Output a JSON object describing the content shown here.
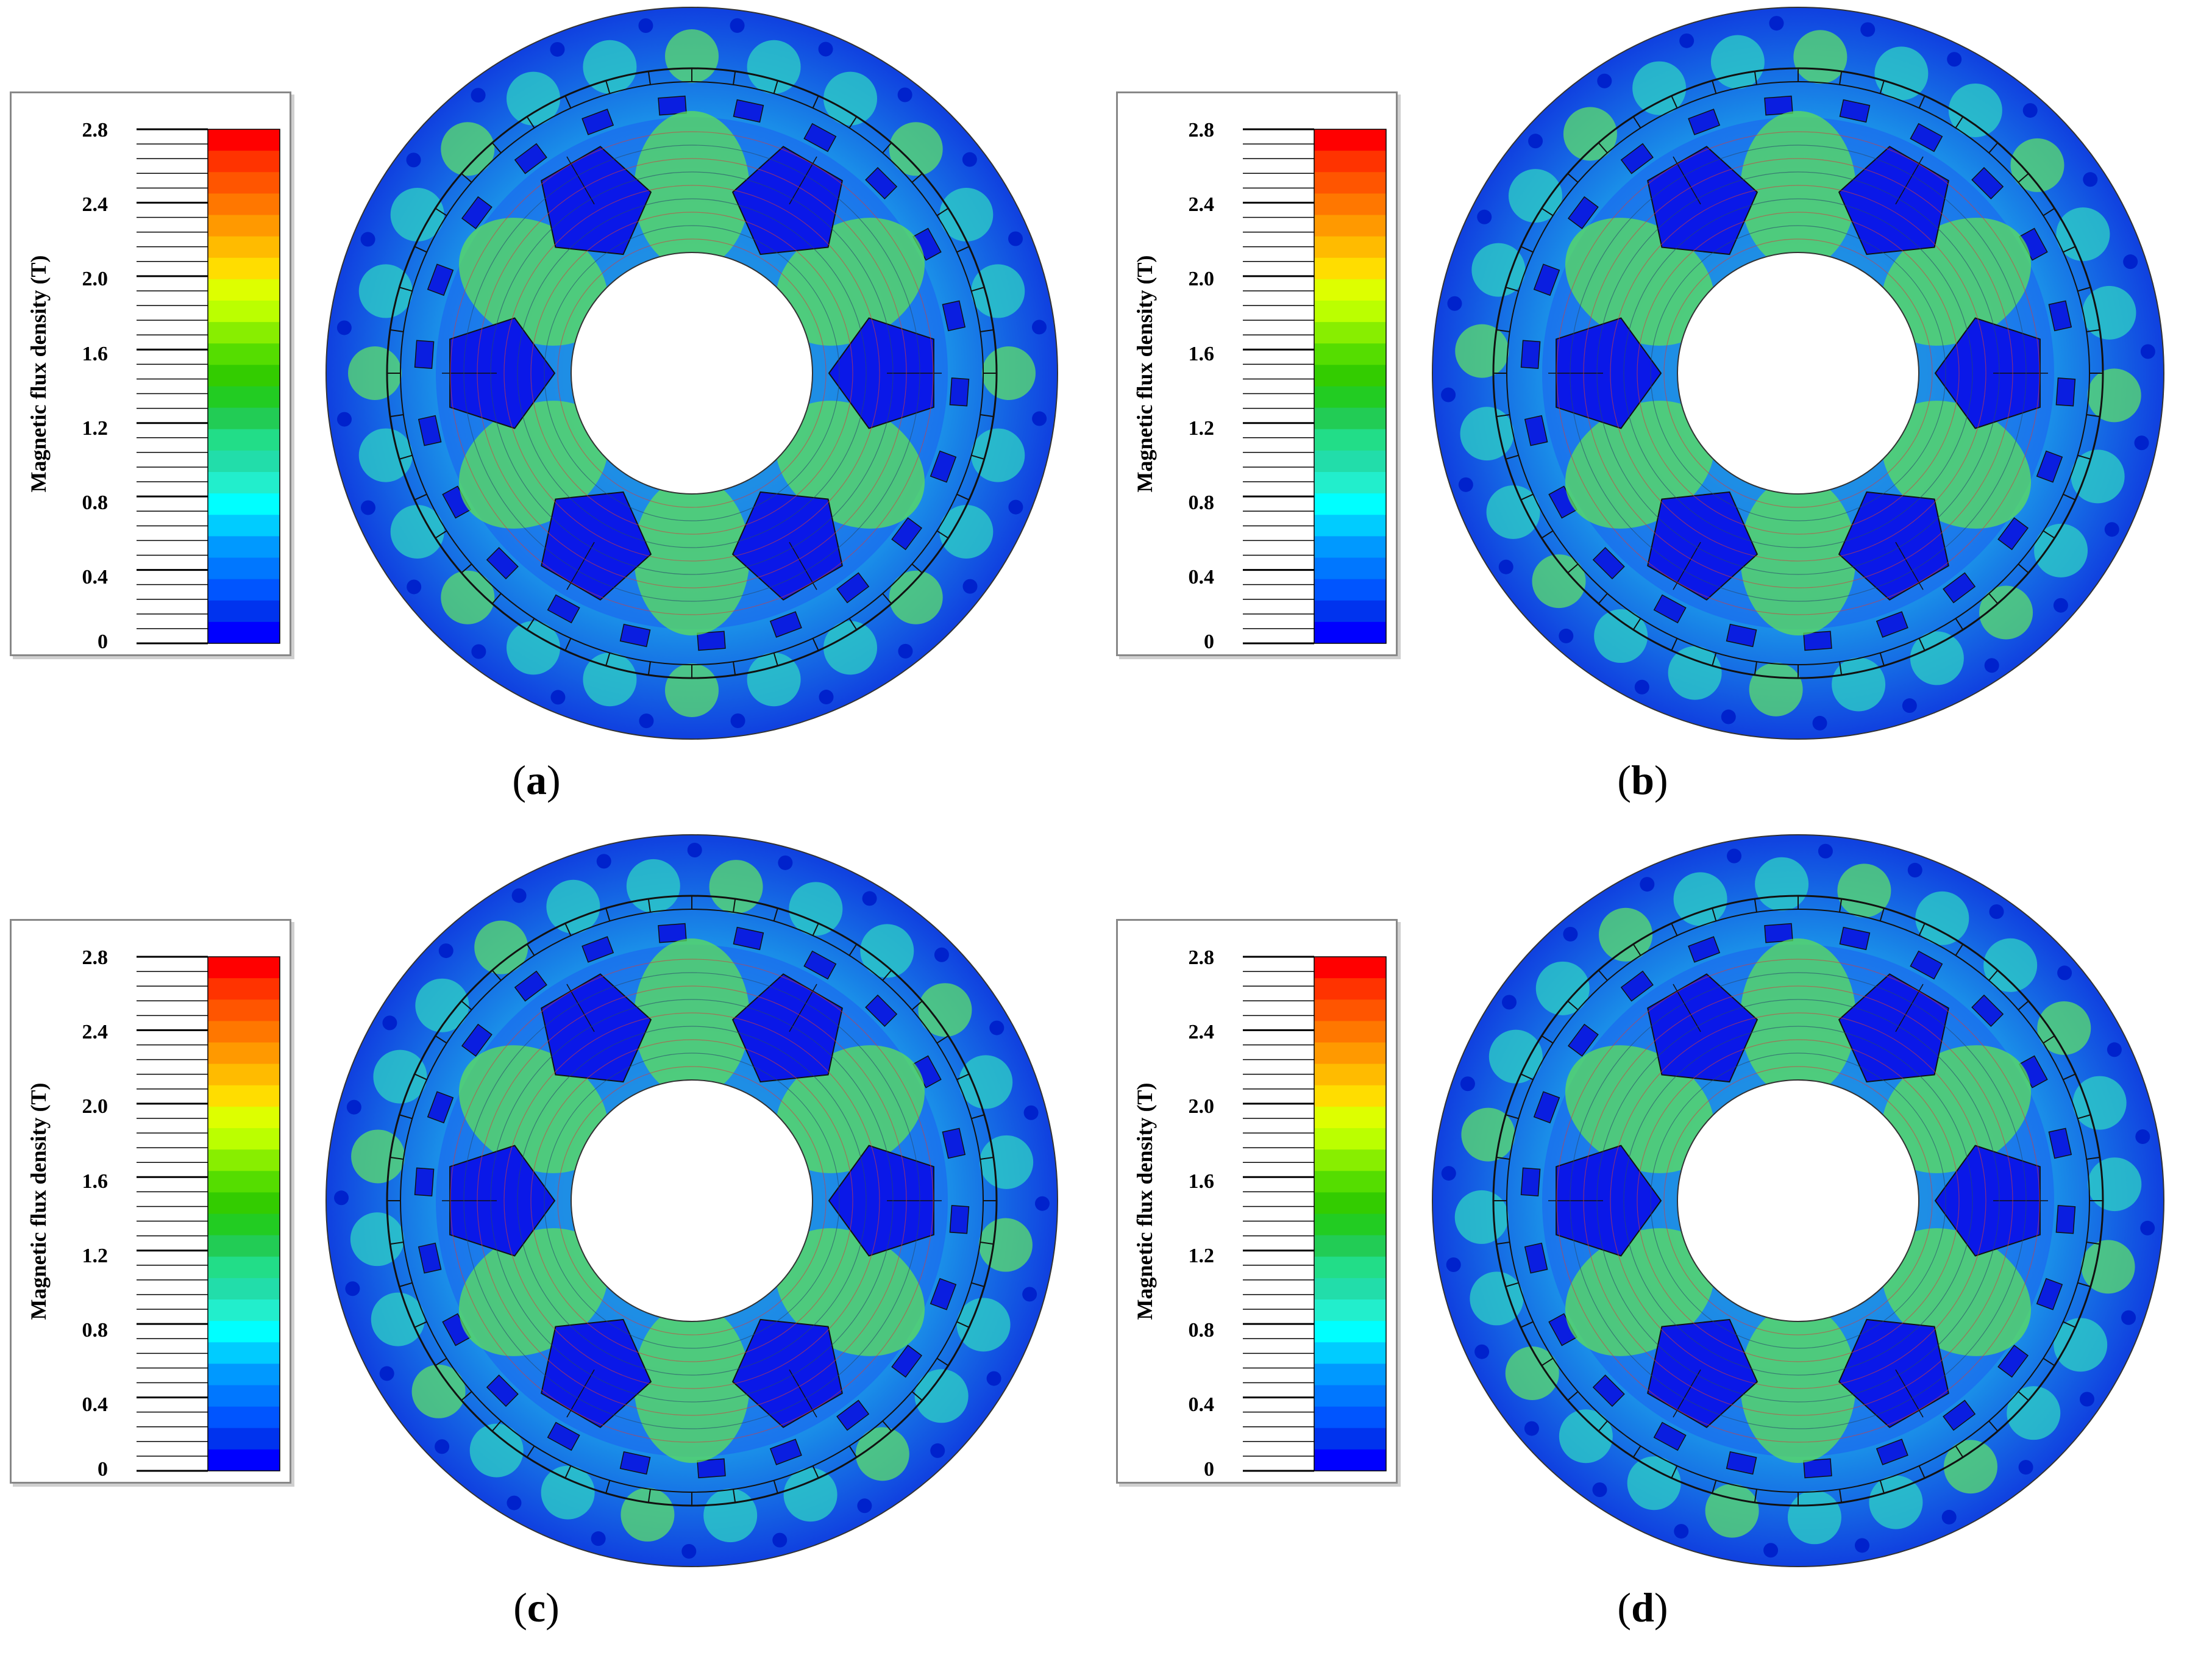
{
  "legend": {
    "title": "Magnetic flux density (T)",
    "ticks": [
      "2.8",
      "2.4",
      "2.0",
      "1.6",
      "1.2",
      "0.8",
      "0.4",
      "0"
    ],
    "colors": [
      "#ff0000",
      "#ff3300",
      "#ff5500",
      "#ff7700",
      "#ff9900",
      "#ffbb00",
      "#ffdd00",
      "#ddff00",
      "#bbff00",
      "#88ee00",
      "#55dd00",
      "#33cc00",
      "#22cc22",
      "#22cc55",
      "#22dd88",
      "#22ddaa",
      "#22eecc",
      "#00ffff",
      "#00ccff",
      "#0099ff",
      "#0077ff",
      "#0055ff",
      "#0033ee",
      "#0000ff"
    ]
  },
  "panels": [
    {
      "label": "a"
    },
    {
      "label": "b"
    },
    {
      "label": "c"
    },
    {
      "label": "d"
    }
  ]
}
